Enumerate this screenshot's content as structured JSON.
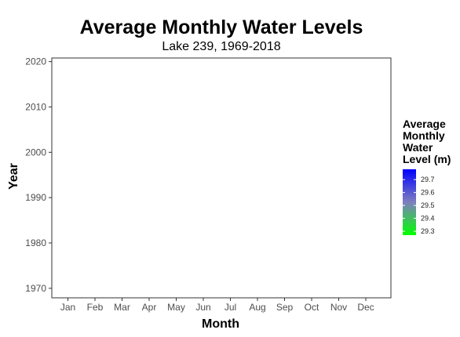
{
  "chart_data": {
    "type": "heatmap",
    "title": "Average Monthly Water Levels",
    "subtitle": "Lake 239, 1969-2018",
    "xlabel": "Month",
    "ylabel": "Year",
    "categories": [
      "Jan",
      "Feb",
      "Mar",
      "Apr",
      "May",
      "Jun",
      "Jul",
      "Aug",
      "Sep",
      "Oct",
      "Nov",
      "Dec"
    ],
    "y_ticks": [
      1970,
      1980,
      1990,
      2000,
      2010,
      2020
    ],
    "ylim": [
      2020.8,
      1967.9
    ],
    "year_range": [
      1969,
      2018
    ],
    "legend": {
      "title_lines": [
        "Average",
        "Monthly",
        "Water",
        "Level (m)"
      ],
      "ticks": [
        29.3,
        29.4,
        29.5,
        29.6,
        29.7
      ],
      "min": 29.27,
      "max": 29.78,
      "low_color": "#00FF00",
      "mid_color": "#7F7FBF",
      "high_color": "#0000FF",
      "missing_color": "#808080"
    },
    "cell_value_range": [
      29.27,
      29.78
    ],
    "seed": 239
  }
}
